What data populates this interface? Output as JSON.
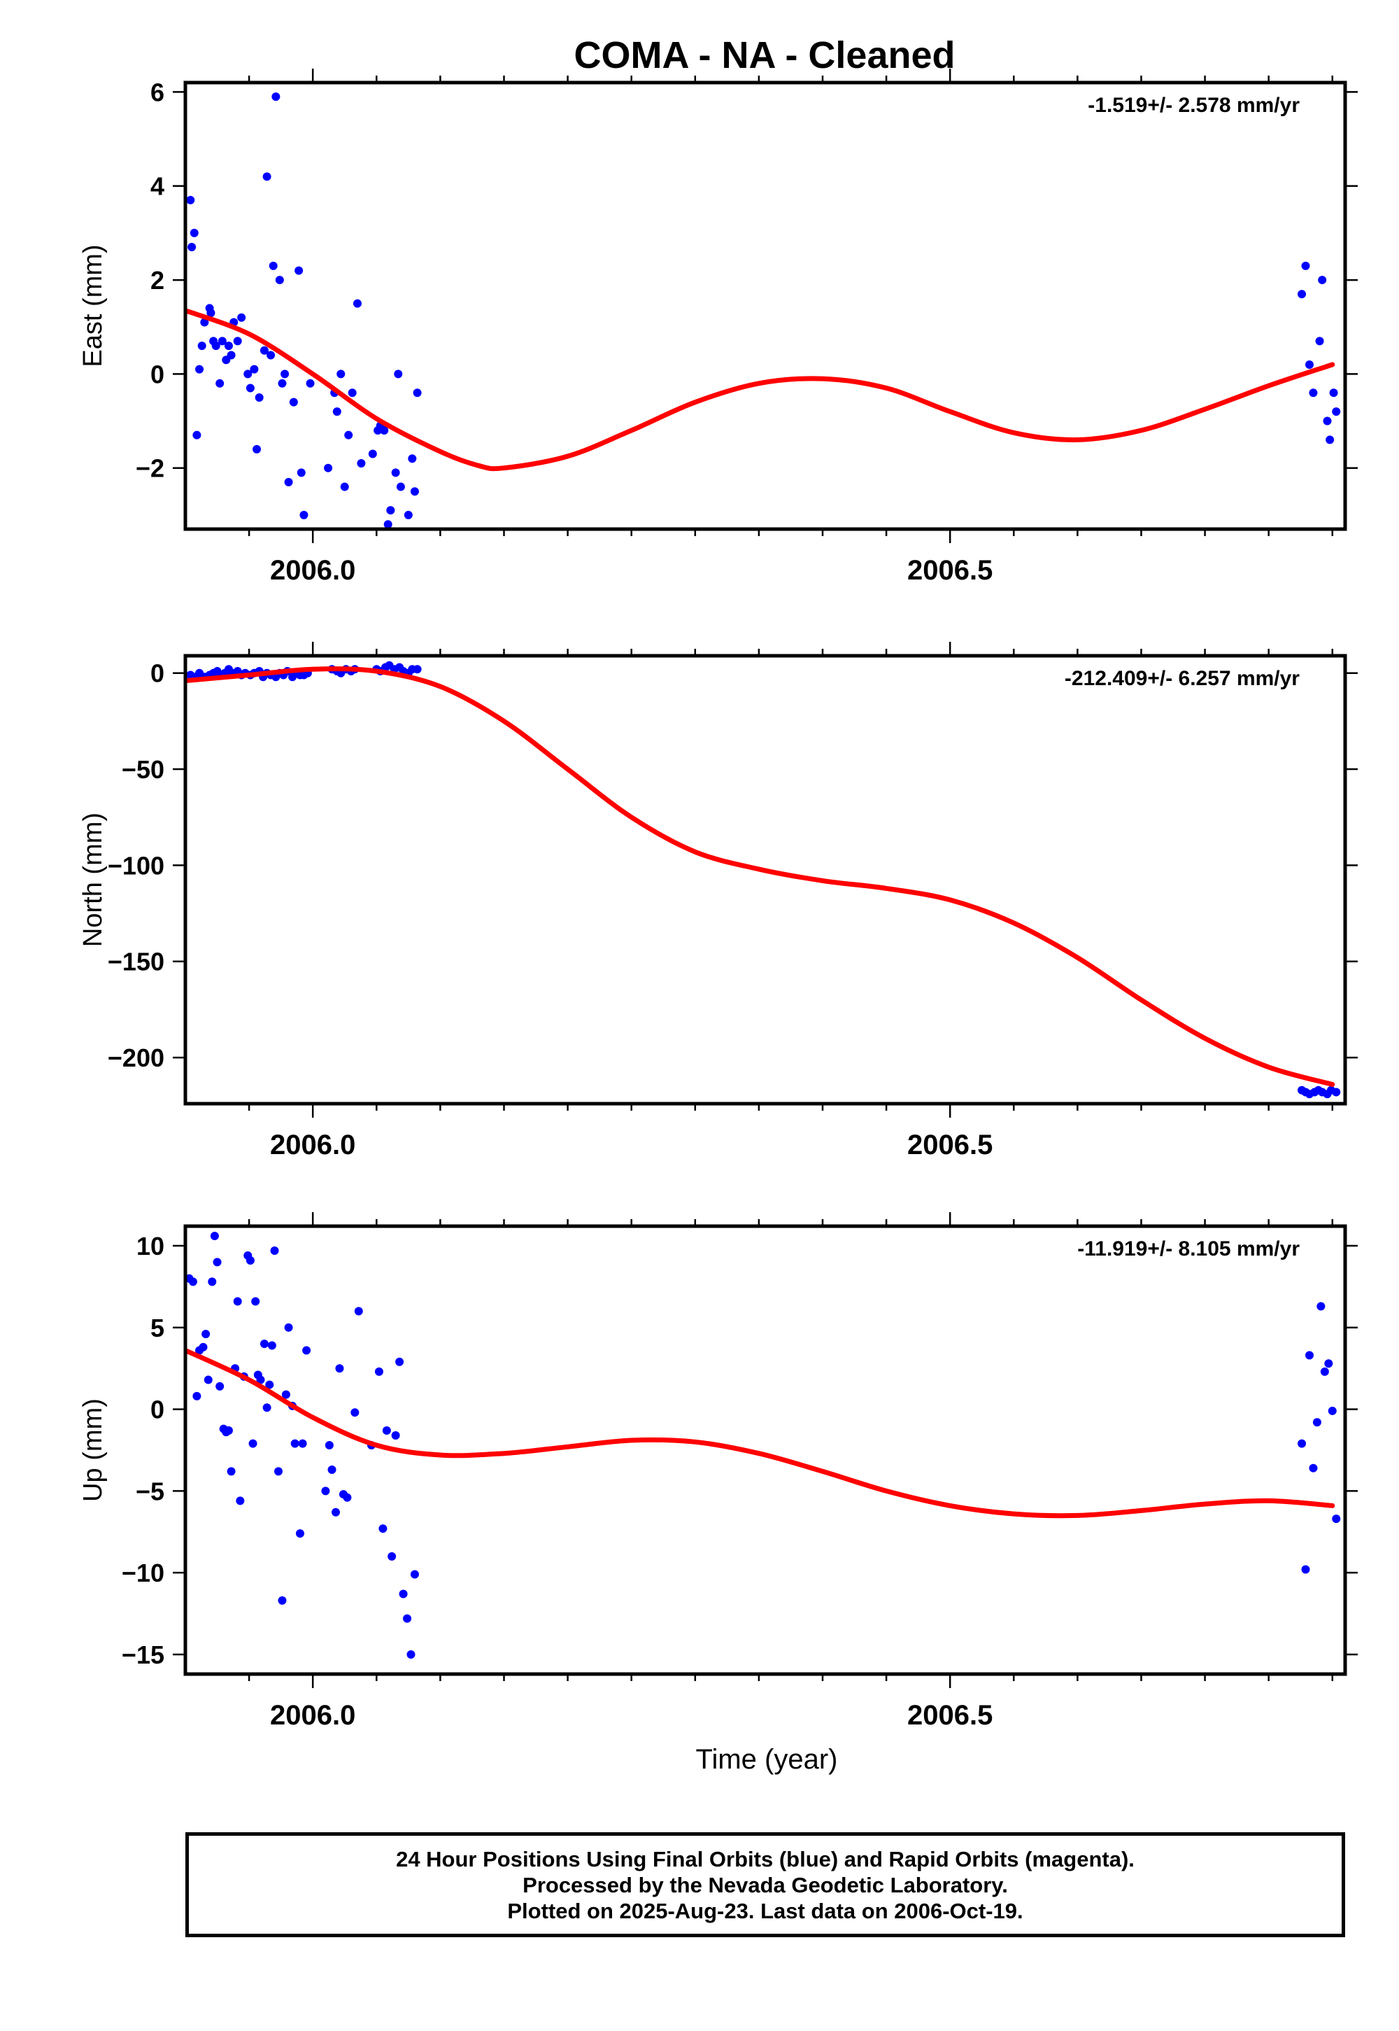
{
  "title": "COMA  - NA - Cleaned",
  "footer": {
    "line1": "24 Hour Positions Using Final Orbits (blue) and Rapid Orbits (magenta).",
    "line2": "Processed by the Nevada Geodetic Laboratory.",
    "line3": "Plotted on 2025-Aug-23. Last data on 2006-Oct-19."
  },
  "colors": {
    "observations": "#0000ff",
    "fit": "#ff0000",
    "frame": "#000000"
  },
  "chart_data": [
    {
      "type": "scatter",
      "ylabel": "East (mm)",
      "rate_label": "-1.519+/- 2.578 mm/yr",
      "xlim": [
        2005.9,
        2006.81
      ],
      "ylim": [
        -3.3,
        6.2
      ],
      "xticks_labeled": [
        "2006.0",
        "2006.5"
      ],
      "yticks": [
        "−2",
        "0",
        "2",
        "4",
        "6"
      ],
      "ytick_values": [
        -2,
        0,
        2,
        4,
        6
      ],
      "series": [
        {
          "x": [
            2005.897,
            2005.904,
            2005.905,
            2005.907,
            2005.909,
            2005.911,
            2005.913,
            2005.915,
            2005.919,
            2005.92,
            2005.922,
            2005.924,
            2005.927,
            2005.929,
            2005.932,
            2005.934,
            2005.936,
            2005.938,
            2005.941,
            2005.944,
            2005.949,
            2005.951,
            2005.954,
            2005.956,
            2005.958,
            2005.962,
            2005.964,
            2005.967,
            2005.969,
            2005.971,
            2005.974,
            2005.976,
            2005.978,
            2005.981,
            2005.985,
            2005.989,
            2005.991,
            2005.993,
            2005.998,
            2006.012,
            2006.017,
            2006.019,
            2006.022,
            2006.025,
            2006.028,
            2006.031,
            2006.035,
            2006.038,
            2006.047,
            2006.051,
            2006.053,
            2006.056,
            2006.059,
            2006.061,
            2006.065,
            2006.067,
            2006.069,
            2006.075,
            2006.078,
            2006.08,
            2006.082,
            2006.776,
            2006.779,
            2006.782,
            2006.785,
            2006.79,
            2006.792,
            2006.796,
            2006.798,
            2006.801,
            2006.803
          ],
          "y": [
            2.7,
            3.7,
            2.7,
            3.0,
            -1.3,
            0.1,
            0.6,
            1.1,
            1.4,
            1.3,
            0.7,
            0.6,
            -0.2,
            0.7,
            0.3,
            0.6,
            0.4,
            1.1,
            0.7,
            1.2,
            0.0,
            -0.3,
            0.1,
            -1.6,
            -0.5,
            0.5,
            4.2,
            0.4,
            2.3,
            5.9,
            2.0,
            -0.2,
            0.0,
            -2.3,
            -0.6,
            2.2,
            -2.1,
            -3.0,
            -0.2,
            -2.0,
            -0.4,
            -0.8,
            0.0,
            -2.4,
            -1.3,
            -0.4,
            1.5,
            -1.9,
            -1.7,
            -1.2,
            -1.1,
            -1.2,
            -3.2,
            -2.9,
            -2.1,
            0.0,
            -2.4,
            -3.0,
            -1.8,
            -2.5,
            -0.4,
            1.7,
            2.3,
            0.2,
            -0.4,
            0.7,
            2.0,
            -1.0,
            -1.4,
            -0.4,
            -0.8
          ]
        }
      ],
      "fit": {
        "x": [
          2005.9,
          2005.95,
          2006.0,
          2006.05,
          2006.1,
          2006.13,
          2006.15,
          2006.2,
          2006.25,
          2006.3,
          2006.35,
          2006.4,
          2006.45,
          2006.5,
          2006.55,
          2006.6,
          2006.65,
          2006.7,
          2006.75,
          2006.8
        ],
        "y": [
          1.35,
          0.85,
          0.0,
          -0.95,
          -1.65,
          -1.95,
          -2.0,
          -1.75,
          -1.2,
          -0.6,
          -0.2,
          -0.1,
          -0.3,
          -0.8,
          -1.25,
          -1.4,
          -1.2,
          -0.75,
          -0.25,
          0.2
        ]
      }
    },
    {
      "type": "scatter",
      "ylabel": "North (mm)",
      "rate_label": "-212.409+/- 6.257 mm/yr",
      "xlim": [
        2005.9,
        2006.81
      ],
      "ylim": [
        -224,
        9
      ],
      "xticks_labeled": [
        "2006.0",
        "2006.5"
      ],
      "yticks": [
        "0",
        "−50",
        "−100",
        "−150",
        "−200"
      ],
      "ytick_values": [
        0,
        -50,
        -100,
        -150,
        -200
      ],
      "series": [
        {
          "x": [
            2005.897,
            2005.904,
            2005.907,
            2005.911,
            2005.915,
            2005.919,
            2005.922,
            2005.925,
            2005.928,
            2005.931,
            2005.934,
            2005.937,
            2005.941,
            2005.944,
            2005.947,
            2005.951,
            2005.954,
            2005.958,
            2005.961,
            2005.964,
            2005.967,
            2005.971,
            2005.974,
            2005.977,
            2005.98,
            2005.984,
            2005.987,
            2005.99,
            2005.993,
            2005.996,
            2006.015,
            2006.019,
            2006.022,
            2006.026,
            2006.03,
            2006.033,
            2006.05,
            2006.053,
            2006.057,
            2006.06,
            2006.064,
            2006.068,
            2006.071,
            2006.075,
            2006.078,
            2006.082,
            2006.776,
            2006.779,
            2006.782,
            2006.786,
            2006.789,
            2006.792,
            2006.796,
            2006.799,
            2006.803
          ],
          "y": [
            3,
            -1,
            -2,
            0,
            -2,
            -1,
            0,
            1,
            -1,
            0,
            2,
            0,
            1,
            -1,
            0,
            -1,
            0,
            1,
            -2,
            0,
            -1,
            -2,
            0,
            -1,
            1,
            -2,
            0,
            -1,
            -1,
            0,
            2,
            1,
            0,
            2,
            1,
            2,
            2,
            1,
            3,
            4,
            2,
            3,
            1,
            0,
            2,
            2,
            -217,
            -218,
            -219,
            -218,
            -217,
            -218,
            -219,
            -217,
            -218
          ]
        }
      ],
      "fit": {
        "x": [
          2005.9,
          2005.95,
          2006.0,
          2006.05,
          2006.1,
          2006.15,
          2006.2,
          2006.25,
          2006.3,
          2006.35,
          2006.4,
          2006.45,
          2006.5,
          2006.55,
          2006.6,
          2006.65,
          2006.7,
          2006.75,
          2006.8
        ],
        "y": [
          -4,
          -1,
          2,
          1,
          -7,
          -25,
          -50,
          -75,
          -93,
          -102,
          -108,
          -112,
          -118,
          -130,
          -148,
          -170,
          -190,
          -205,
          -214
        ]
      }
    },
    {
      "type": "scatter",
      "ylabel": "Up (mm)",
      "rate_label": "-11.919+/- 8.105 mm/yr",
      "xlabel": "Time (year)",
      "xlim": [
        2005.9,
        2006.81
      ],
      "ylim": [
        -16.2,
        11.2
      ],
      "xticks_labeled": [
        "2006.0",
        "2006.5"
      ],
      "yticks": [
        "10",
        "5",
        "0",
        "−5",
        "−10",
        "−15"
      ],
      "ytick_values": [
        10,
        5,
        0,
        -5,
        -10,
        -15
      ],
      "series": [
        {
          "x": [
            2005.897,
            2005.903,
            2005.906,
            2005.909,
            2005.911,
            2005.914,
            2005.916,
            2005.918,
            2005.921,
            2005.923,
            2005.925,
            2005.927,
            2005.93,
            2005.932,
            2005.934,
            2005.936,
            2005.939,
            2005.941,
            2005.943,
            2005.946,
            2005.949,
            2005.951,
            2005.953,
            2005.955,
            2005.957,
            2005.959,
            2005.962,
            2005.964,
            2005.966,
            2005.968,
            2005.97,
            2005.973,
            2005.976,
            2005.979,
            2005.981,
            2005.984,
            2005.986,
            2005.99,
            2005.992,
            2005.995,
            2006.01,
            2006.013,
            2006.015,
            2006.018,
            2006.021,
            2006.024,
            2006.027,
            2006.033,
            2006.036,
            2006.046,
            2006.052,
            2006.055,
            2006.058,
            2006.062,
            2006.065,
            2006.068,
            2006.071,
            2006.074,
            2006.077,
            2006.08,
            2006.776,
            2006.779,
            2006.782,
            2006.785,
            2006.788,
            2006.791,
            2006.794,
            2006.797,
            2006.8,
            2006.803
          ],
          "y": [
            -9.8,
            8.0,
            7.8,
            0.8,
            3.6,
            3.8,
            4.6,
            1.8,
            7.8,
            10.6,
            9.0,
            1.4,
            -1.2,
            -1.4,
            -1.3,
            -3.8,
            2.5,
            6.6,
            -5.6,
            2.0,
            9.4,
            9.1,
            -2.1,
            6.6,
            2.1,
            1.8,
            4.0,
            0.1,
            1.5,
            3.9,
            9.7,
            -3.8,
            -11.7,
            0.9,
            5.0,
            0.2,
            -2.1,
            -7.6,
            -2.1,
            3.6,
            -5.0,
            -2.2,
            -3.7,
            -6.3,
            2.5,
            -5.2,
            -5.4,
            -0.2,
            6.0,
            -2.2,
            2.3,
            -7.3,
            -1.3,
            -9.0,
            -1.6,
            2.9,
            -11.3,
            -12.8,
            -15.0,
            -10.1,
            -2.1,
            -9.8,
            3.3,
            -3.6,
            -0.8,
            6.3,
            2.3,
            2.8,
            -0.1,
            -6.7
          ]
        }
      ],
      "fit": {
        "x": [
          2005.9,
          2005.95,
          2006.0,
          2006.05,
          2006.1,
          2006.15,
          2006.2,
          2006.25,
          2006.3,
          2006.35,
          2006.4,
          2006.45,
          2006.5,
          2006.55,
          2006.6,
          2006.65,
          2006.7,
          2006.75,
          2006.8
        ],
        "y": [
          3.6,
          1.8,
          -0.5,
          -2.2,
          -2.8,
          -2.7,
          -2.3,
          -1.9,
          -2.0,
          -2.7,
          -3.8,
          -5.0,
          -5.9,
          -6.4,
          -6.5,
          -6.2,
          -5.8,
          -5.6,
          -5.9
        ]
      }
    }
  ]
}
